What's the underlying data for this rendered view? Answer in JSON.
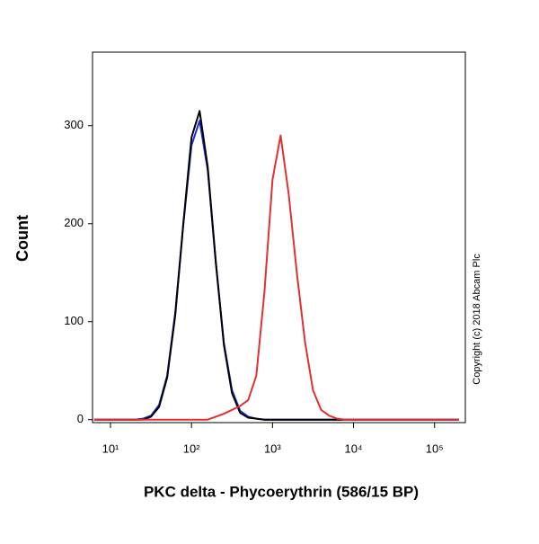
{
  "chart_data": {
    "type": "line",
    "xlabel": "PKC delta - Phycoerythrin (586/15 BP)",
    "ylabel": "Count",
    "annotation": "Copyright (c) 2018 Abcam Plc",
    "xscale": "log",
    "xlim": [
      6,
      240000
    ],
    "ylim": [
      -3,
      375
    ],
    "xticks": [
      {
        "value": 10,
        "label": "10¹"
      },
      {
        "value": 100,
        "label": "10²"
      },
      {
        "value": 1000,
        "label": "10³"
      },
      {
        "value": 10000,
        "label": "10⁴"
      },
      {
        "value": 100000,
        "label": "10⁵"
      }
    ],
    "yticks": [
      0,
      100,
      200,
      300
    ],
    "x": [
      6.3,
      7.9,
      10,
      12.6,
      15.8,
      20,
      25.1,
      31.6,
      39.8,
      50.1,
      63.1,
      79.4,
      100,
      125.9,
      158.5,
      199.5,
      251.2,
      316.2,
      398.1,
      501.2,
      631,
      794.3,
      1000,
      1259,
      1585,
      1995,
      2512,
      3162,
      3981,
      5012,
      6310,
      7943,
      10000,
      12589,
      15849,
      19953,
      25119,
      31623,
      39811,
      50119,
      63096,
      79433,
      100000,
      125893,
      158489,
      199526
    ],
    "series": [
      {
        "color": "#1f2bd6",
        "values": [
          0,
          0,
          0,
          0,
          0,
          0,
          1,
          4,
          15,
          45,
          110,
          200,
          280,
          305,
          255,
          160,
          78,
          30,
          9,
          3,
          1,
          0,
          0,
          0,
          0,
          0,
          0,
          0,
          0,
          0,
          0,
          0,
          0,
          0,
          0,
          0,
          0,
          0,
          0,
          0,
          0,
          0,
          0,
          0,
          0,
          0
        ]
      },
      {
        "color": "#000000",
        "values": [
          0,
          0,
          0,
          0,
          0,
          0,
          0,
          3,
          13,
          43,
          107,
          201,
          288,
          315,
          258,
          161,
          76,
          27,
          7,
          2,
          1,
          0,
          0,
          0,
          0,
          0,
          0,
          0,
          0,
          0,
          0,
          0,
          0,
          0,
          0,
          0,
          0,
          0,
          0,
          0,
          0,
          0,
          0,
          0,
          0,
          0
        ]
      },
      {
        "color": "#e03030",
        "values": [
          0,
          0,
          0,
          0,
          0,
          0,
          0,
          0,
          0,
          0,
          0,
          0,
          0,
          0,
          0,
          3,
          6,
          10,
          14,
          20,
          45,
          130,
          245,
          290,
          230,
          150,
          80,
          30,
          10,
          4,
          1,
          0,
          0,
          0,
          0,
          0,
          0,
          0,
          0,
          0,
          0,
          0,
          0,
          0,
          0,
          0
        ]
      }
    ]
  }
}
